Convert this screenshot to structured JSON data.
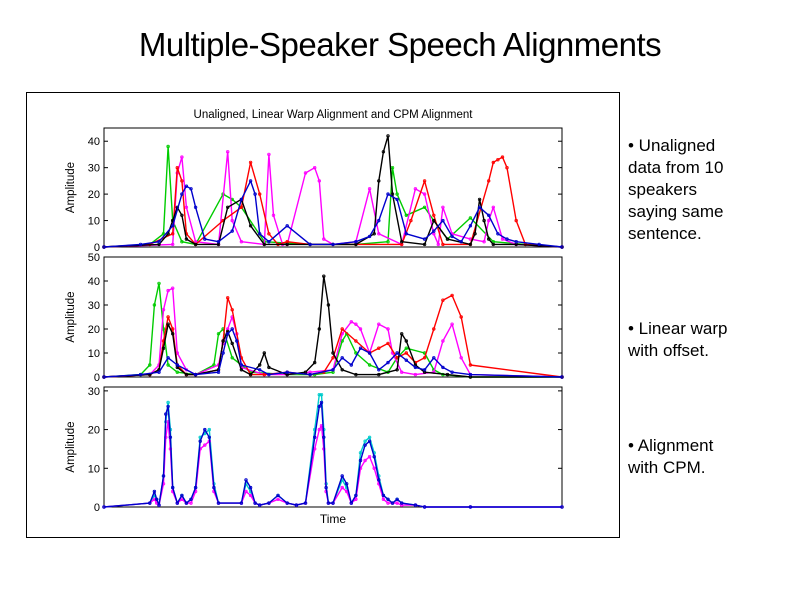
{
  "slide": {
    "title": "Multiple-Speaker Speech Alignments",
    "bullets": [
      "• Unaligned\ndata from 10\nspeakers\nsaying same\nsentence.",
      "• Linear warp\nwith offset.",
      "• Alignment\nwith CPM."
    ]
  },
  "chart_data": [
    {
      "type": "line",
      "title": "Unaligned, Linear Warp Alignment and CPM Alignment",
      "xlabel": "",
      "ylabel": "Amplitude",
      "yticks": [
        0,
        10,
        20,
        30,
        40
      ],
      "ylim": [
        0,
        45
      ],
      "xlim": [
        0,
        100
      ],
      "series": [
        {
          "color": "#00cc00",
          "x": [
            0,
            10,
            13,
            14,
            15,
            17,
            20,
            26,
            28,
            30,
            35,
            45,
            55,
            62,
            63,
            64,
            66,
            70,
            72,
            75,
            80,
            85,
            92,
            100
          ],
          "y": [
            0,
            1,
            5,
            38,
            10,
            2,
            1,
            20,
            18,
            15,
            2,
            1,
            1,
            2,
            30,
            20,
            12,
            15,
            10,
            3,
            11,
            2,
            1,
            0
          ]
        },
        {
          "color": "#ff00ff",
          "x": [
            0,
            15,
            16,
            17,
            18,
            20,
            25,
            27,
            28,
            30,
            35,
            36,
            37,
            39,
            40,
            44,
            46,
            47,
            48,
            50,
            55,
            58,
            60,
            65,
            68,
            70,
            72,
            73,
            74,
            76,
            80,
            83,
            84,
            85,
            87,
            90,
            100
          ],
          "y": [
            0,
            1,
            28,
            34,
            15,
            2,
            1,
            36,
            10,
            2,
            1,
            35,
            12,
            1,
            1,
            28,
            30,
            25,
            3,
            1,
            2,
            22,
            5,
            1,
            22,
            20,
            5,
            1,
            15,
            5,
            3,
            2,
            10,
            15,
            3,
            1,
            0
          ]
        },
        {
          "color": "#ff0000",
          "x": [
            0,
            10,
            15,
            16,
            17,
            18,
            20,
            26,
            30,
            32,
            34,
            36,
            38,
            40,
            45,
            55,
            65,
            67,
            70,
            72,
            74,
            80,
            84,
            85,
            86,
            87,
            88,
            90,
            92,
            100
          ],
          "y": [
            0,
            1,
            5,
            30,
            25,
            5,
            1,
            10,
            15,
            32,
            20,
            5,
            1,
            2,
            1,
            1,
            1,
            10,
            25,
            12,
            1,
            1,
            25,
            32,
            33,
            34,
            30,
            10,
            1,
            0
          ]
        },
        {
          "color": "#000000",
          "x": [
            0,
            12,
            14,
            15,
            16,
            17,
            18,
            20,
            25,
            27,
            30,
            32,
            35,
            40,
            45,
            50,
            55,
            59,
            60,
            61,
            62,
            63,
            65,
            70,
            72,
            75,
            80,
            81,
            82,
            83,
            84,
            85,
            90,
            100
          ],
          "y": [
            0,
            1,
            5,
            10,
            15,
            12,
            3,
            1,
            1,
            15,
            18,
            8,
            1,
            1,
            1,
            1,
            1,
            5,
            25,
            36,
            42,
            20,
            2,
            1,
            10,
            3,
            1,
            5,
            18,
            10,
            3,
            1,
            1,
            0
          ]
        },
        {
          "color": "#0000cc",
          "x": [
            0,
            8,
            12,
            15,
            17,
            18,
            19,
            20,
            22,
            25,
            28,
            30,
            32,
            33,
            34,
            36,
            40,
            45,
            50,
            55,
            58,
            60,
            62,
            64,
            66,
            70,
            72,
            74,
            76,
            78,
            80,
            82,
            84,
            86,
            88,
            90,
            95,
            100
          ],
          "y": [
            0,
            1,
            2,
            8,
            20,
            23,
            22,
            15,
            3,
            2,
            6,
            18,
            25,
            20,
            5,
            2,
            8,
            1,
            1,
            2,
            4,
            10,
            20,
            18,
            5,
            3,
            6,
            10,
            4,
            2,
            8,
            15,
            12,
            5,
            3,
            2,
            1,
            0
          ]
        }
      ]
    },
    {
      "type": "line",
      "xlabel": "",
      "ylabel": "Amplitude",
      "yticks": [
        0,
        10,
        20,
        30,
        40,
        50
      ],
      "ylim": [
        0,
        50
      ],
      "xlim": [
        0,
        100
      ],
      "series": [
        {
          "color": "#00cc00",
          "x": [
            0,
            8,
            10,
            11,
            12,
            13,
            14,
            16,
            20,
            24,
            25,
            26,
            28,
            32,
            40,
            46,
            50,
            52,
            53,
            55,
            58,
            62,
            64,
            66,
            70,
            72,
            74,
            80,
            100
          ],
          "y": [
            0,
            1,
            5,
            30,
            39,
            20,
            5,
            2,
            1,
            5,
            18,
            20,
            8,
            2,
            1,
            1,
            2,
            15,
            18,
            10,
            5,
            2,
            8,
            12,
            10,
            3,
            1,
            0,
            0
          ]
        },
        {
          "color": "#ff00ff",
          "x": [
            0,
            10,
            12,
            13,
            14,
            15,
            16,
            18,
            20,
            25,
            26,
            27,
            28,
            29,
            30,
            35,
            40,
            45,
            50,
            52,
            54,
            55,
            56,
            58,
            60,
            62,
            63,
            65,
            68,
            72,
            74,
            76,
            78,
            80,
            100
          ],
          "y": [
            0,
            1,
            5,
            28,
            36,
            37,
            10,
            3,
            1,
            5,
            14,
            20,
            25,
            18,
            4,
            1,
            1,
            2,
            3,
            18,
            23,
            22,
            20,
            10,
            22,
            20,
            10,
            2,
            1,
            2,
            15,
            22,
            8,
            1,
            0
          ]
        },
        {
          "color": "#ff0000",
          "x": [
            0,
            10,
            12,
            13,
            14,
            15,
            16,
            18,
            20,
            25,
            26,
            27,
            28,
            30,
            32,
            35,
            40,
            45,
            48,
            50,
            52,
            55,
            58,
            60,
            62,
            64,
            66,
            68,
            70,
            72,
            74,
            76,
            78,
            80,
            100
          ],
          "y": [
            0,
            1,
            3,
            15,
            25,
            20,
            5,
            1,
            1,
            3,
            15,
            33,
            28,
            8,
            1,
            1,
            2,
            1,
            2,
            8,
            20,
            15,
            10,
            12,
            14,
            8,
            10,
            6,
            8,
            20,
            32,
            34,
            25,
            5,
            0
          ]
        },
        {
          "color": "#000000",
          "x": [
            0,
            10,
            12,
            13,
            14,
            15,
            16,
            18,
            20,
            25,
            26,
            27,
            28,
            30,
            32,
            34,
            35,
            36,
            40,
            44,
            46,
            47,
            48,
            49,
            50,
            52,
            55,
            60,
            64,
            65,
            66,
            68,
            70,
            75,
            80,
            100
          ],
          "y": [
            0,
            1,
            3,
            12,
            22,
            18,
            4,
            1,
            1,
            3,
            15,
            19,
            14,
            3,
            1,
            5,
            10,
            4,
            1,
            2,
            6,
            20,
            42,
            30,
            10,
            3,
            1,
            1,
            3,
            18,
            15,
            5,
            2,
            1,
            0,
            0
          ]
        },
        {
          "color": "#0000cc",
          "x": [
            0,
            8,
            12,
            14,
            16,
            20,
            25,
            26,
            27,
            28,
            29,
            30,
            34,
            36,
            40,
            45,
            50,
            52,
            54,
            56,
            58,
            60,
            62,
            64,
            66,
            68,
            70,
            72,
            74,
            76,
            80,
            100
          ],
          "y": [
            0,
            1,
            2,
            8,
            5,
            1,
            2,
            10,
            18,
            20,
            15,
            5,
            3,
            1,
            2,
            1,
            3,
            8,
            5,
            12,
            10,
            3,
            6,
            10,
            7,
            4,
            3,
            8,
            4,
            2,
            1,
            0
          ]
        }
      ]
    },
    {
      "type": "line",
      "xlabel": "Time",
      "ylabel": "Amplitude",
      "yticks": [
        0,
        10,
        20,
        30
      ],
      "ylim": [
        0,
        31
      ],
      "xlim": [
        0,
        100
      ],
      "series": [
        {
          "color": "#00cccc",
          "x": [
            0,
            10,
            11,
            11.5,
            12,
            13,
            13.5,
            14,
            14.5,
            15,
            16,
            17,
            18,
            19,
            20,
            21,
            22,
            23,
            24,
            25,
            30,
            31,
            32,
            33,
            34,
            36,
            38,
            40,
            42,
            44,
            46,
            47,
            47.5,
            48,
            48.5,
            49,
            50,
            52,
            53,
            54,
            55,
            56,
            57,
            58,
            59,
            60,
            61,
            62,
            63,
            64,
            65,
            68,
            70,
            80,
            100
          ],
          "y": [
            0,
            1,
            3,
            2,
            0.5,
            8,
            22,
            27,
            20,
            5,
            1,
            3,
            1,
            2,
            5,
            18,
            19,
            20,
            6,
            1,
            1,
            6,
            4,
            1,
            0.5,
            1,
            3,
            1,
            0.5,
            1,
            20,
            29,
            29,
            20,
            6,
            1,
            1,
            7,
            5,
            1,
            3,
            14,
            17,
            18,
            14,
            8,
            3,
            2,
            1,
            2,
            1,
            0.5,
            0,
            0,
            0
          ]
        },
        {
          "color": "#ff00ff",
          "x": [
            0,
            10,
            11,
            11.5,
            12,
            13,
            13.5,
            14,
            14.5,
            15,
            16,
            17,
            18,
            19,
            20,
            21,
            22,
            23,
            24,
            25,
            30,
            31,
            32,
            33,
            34,
            36,
            38,
            40,
            42,
            44,
            46,
            47,
            47.5,
            48,
            48.5,
            49,
            50,
            52,
            53,
            54,
            55,
            56,
            57,
            58,
            59,
            60,
            61,
            62,
            63,
            64,
            65,
            68,
            70,
            80,
            100
          ],
          "y": [
            0,
            1,
            2,
            1,
            0.5,
            6,
            18,
            22,
            15,
            4,
            1,
            2,
            1,
            1,
            4,
            15,
            16,
            17,
            4,
            1,
            1,
            4,
            3,
            1,
            0.5,
            1,
            2,
            1,
            0.5,
            1,
            15,
            20,
            21,
            15,
            4,
            1,
            1,
            5,
            4,
            1,
            2,
            10,
            12,
            13,
            10,
            6,
            2,
            1,
            1,
            1,
            0.5,
            0.5,
            0,
            0,
            0
          ]
        },
        {
          "color": "#0000cc",
          "x": [
            0,
            10,
            11,
            11.5,
            12,
            13,
            13.5,
            14,
            14.5,
            15,
            16,
            17,
            18,
            19,
            20,
            21,
            22,
            23,
            24,
            25,
            30,
            31,
            32,
            33,
            34,
            36,
            38,
            40,
            42,
            44,
            46,
            47,
            47.5,
            48,
            48.5,
            49,
            50,
            52,
            53,
            54,
            55,
            56,
            57,
            58,
            59,
            60,
            61,
            62,
            63,
            64,
            65,
            68,
            70,
            80,
            100
          ],
          "y": [
            0,
            1,
            4,
            2,
            0.5,
            8,
            24,
            26,
            18,
            5,
            1,
            3,
            1,
            2,
            5,
            17,
            20,
            18,
            5,
            1,
            1,
            7,
            5,
            1,
            0.5,
            1,
            3,
            1,
            0.5,
            1,
            18,
            26,
            27,
            18,
            5,
            1,
            1,
            8,
            6,
            1,
            3,
            12,
            16,
            17,
            13,
            7,
            3,
            2,
            1,
            2,
            1,
            0.5,
            0,
            0,
            0
          ]
        }
      ]
    }
  ]
}
